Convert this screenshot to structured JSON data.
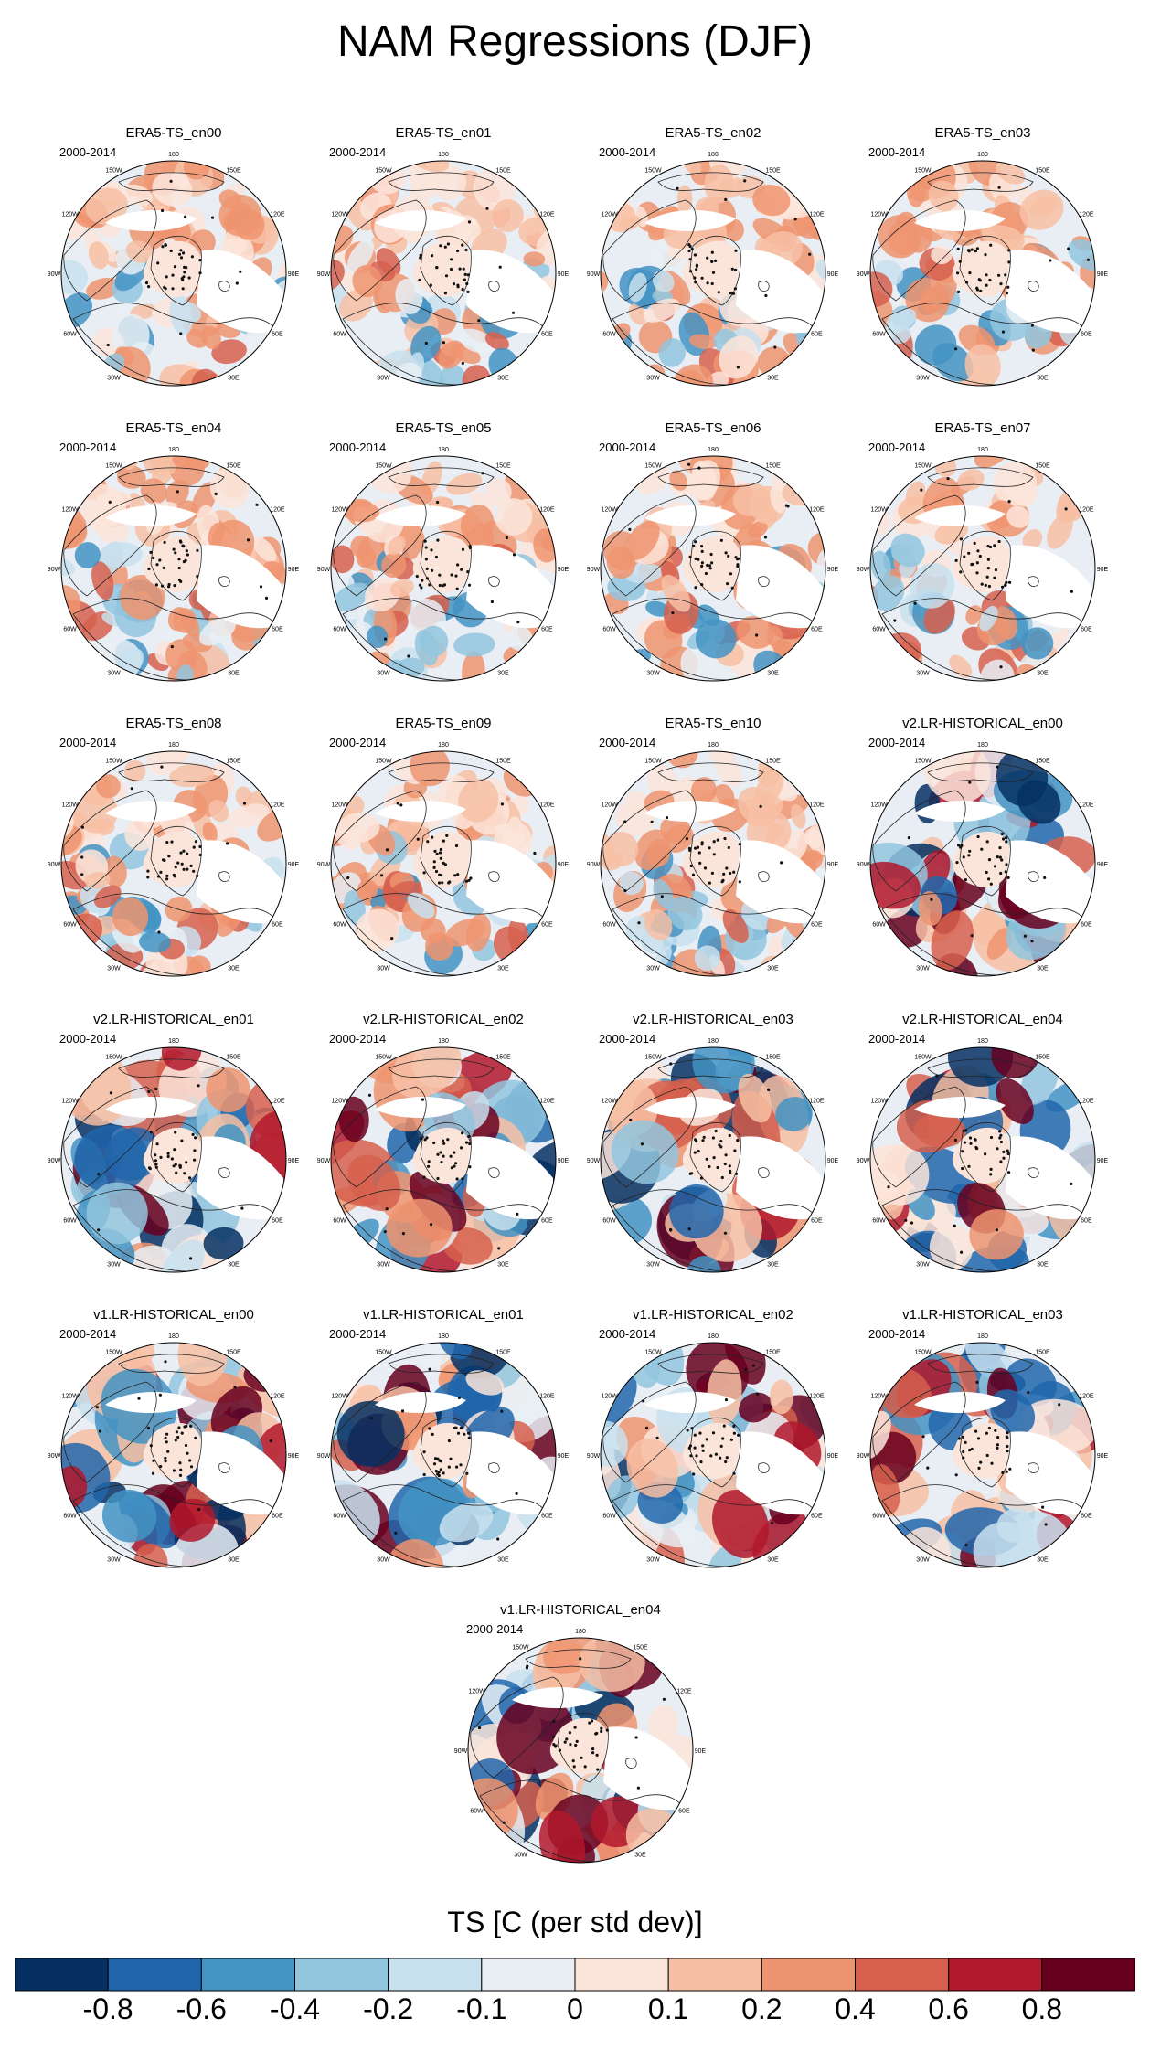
{
  "title": "NAM Regressions (DJF)",
  "period": "2000-2014",
  "panels": [
    {
      "title": "ERA5-TS_en00",
      "style": "era5",
      "seed": 11
    },
    {
      "title": "ERA5-TS_en01",
      "style": "era5",
      "seed": 12
    },
    {
      "title": "ERA5-TS_en02",
      "style": "era5",
      "seed": 13
    },
    {
      "title": "ERA5-TS_en03",
      "style": "era5",
      "seed": 14
    },
    {
      "title": "ERA5-TS_en04",
      "style": "era5",
      "seed": 15
    },
    {
      "title": "ERA5-TS_en05",
      "style": "era5",
      "seed": 16
    },
    {
      "title": "ERA5-TS_en06",
      "style": "era5",
      "seed": 17
    },
    {
      "title": "ERA5-TS_en07",
      "style": "era5",
      "seed": 18
    },
    {
      "title": "ERA5-TS_en08",
      "style": "era5",
      "seed": 19
    },
    {
      "title": "ERA5-TS_en09",
      "style": "era5",
      "seed": 20
    },
    {
      "title": "ERA5-TS_en10",
      "style": "era5",
      "seed": 21
    },
    {
      "title": "v2.LR-HISTORICAL_en00",
      "style": "model",
      "seed": 31
    },
    {
      "title": "v2.LR-HISTORICAL_en01",
      "style": "model",
      "seed": 32
    },
    {
      "title": "v2.LR-HISTORICAL_en02",
      "style": "model",
      "seed": 33
    },
    {
      "title": "v2.LR-HISTORICAL_en03",
      "style": "model",
      "seed": 34
    },
    {
      "title": "v2.LR-HISTORICAL_en04",
      "style": "model",
      "seed": 35
    },
    {
      "title": "v1.LR-HISTORICAL_en00",
      "style": "model",
      "seed": 41
    },
    {
      "title": "v1.LR-HISTORICAL_en01",
      "style": "model",
      "seed": 42
    },
    {
      "title": "v1.LR-HISTORICAL_en02",
      "style": "model",
      "seed": 43
    },
    {
      "title": "v1.LR-HISTORICAL_en03",
      "style": "model",
      "seed": 44
    },
    {
      "title": "v1.LR-HISTORICAL_en04",
      "style": "model",
      "seed": 45
    }
  ],
  "lon_labels": [
    "180",
    "150E",
    "120E",
    "90E",
    "60E",
    "30E",
    "0",
    "30W",
    "60W",
    "90W",
    "120W",
    "150W"
  ],
  "colorbar": {
    "title": "TS [C (per std dev)]",
    "labels": [
      "-0.8",
      "-0.6",
      "-0.4",
      "-0.2",
      "-0.1",
      "0",
      "0.1",
      "0.2",
      "0.4",
      "0.6",
      "0.8"
    ],
    "colors": [
      "#053061",
      "#2166ac",
      "#4393c3",
      "#92c5de",
      "#c8e1ef",
      "#e8eef4",
      "#fbe5da",
      "#f7c0a4",
      "#ee9470",
      "#d6604d",
      "#b2182b",
      "#67001f"
    ]
  }
}
